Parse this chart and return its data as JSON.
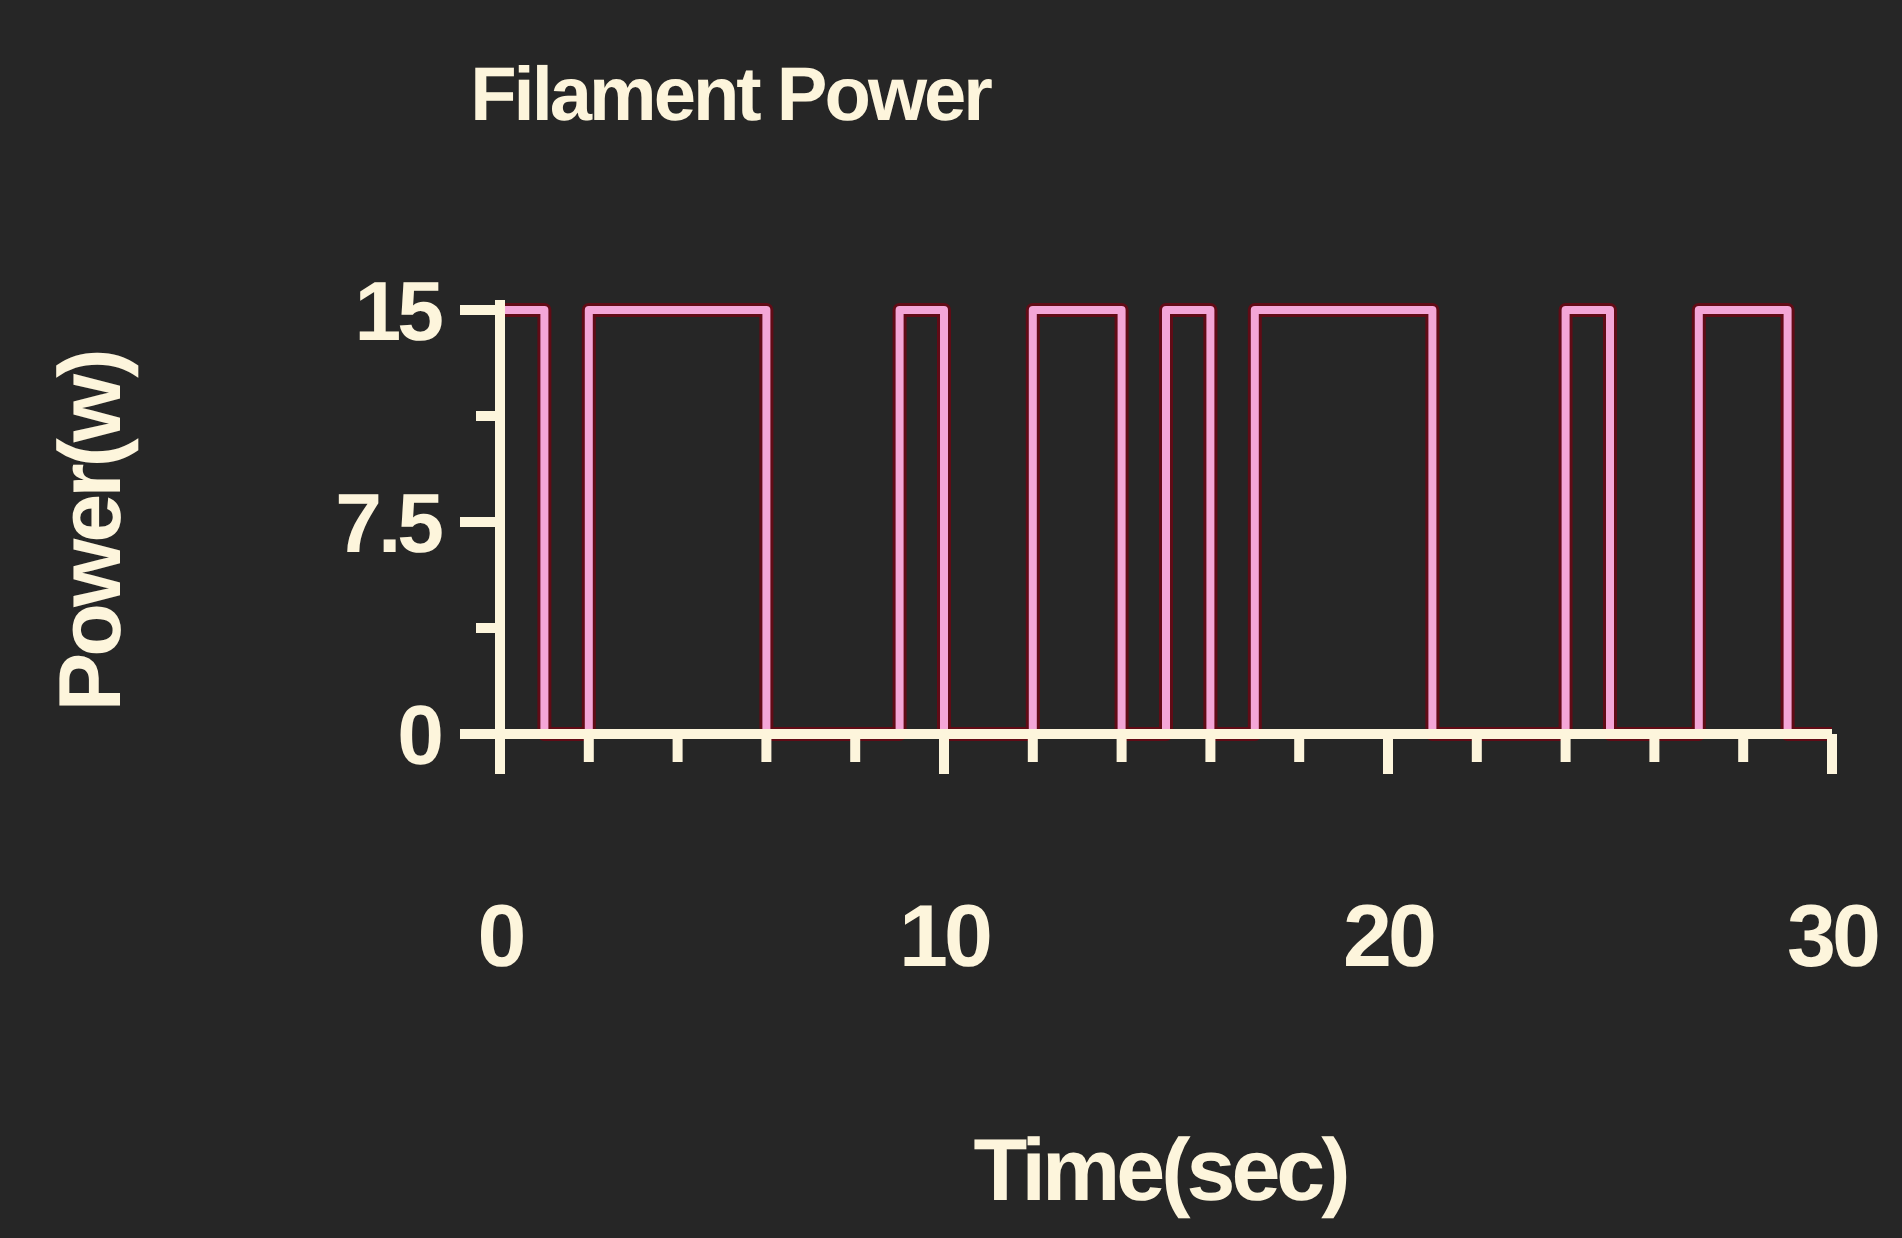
{
  "chart_data": {
    "type": "line",
    "title": "Filament Power",
    "xlabel": "Time(sec)",
    "ylabel": "Power(w)",
    "xlim": [
      0,
      30
    ],
    "ylim": [
      0,
      15
    ],
    "xticks": [
      0,
      {
        "value": 2,
        "label": null
      },
      {
        "value": 4,
        "label": null
      },
      {
        "value": 6,
        "label": null
      },
      {
        "value": 8,
        "label": null
      },
      10,
      {
        "value": 12,
        "label": null
      },
      {
        "value": 14,
        "label": null
      },
      {
        "value": 16,
        "label": null
      },
      {
        "value": 18,
        "label": null
      },
      20,
      {
        "value": 22,
        "label": null
      },
      {
        "value": 24,
        "label": null
      },
      {
        "value": 26,
        "label": null
      },
      {
        "value": 28,
        "label": null
      },
      30
    ],
    "yticks": [
      0,
      {
        "value": 3.75,
        "label": null
      },
      7.5,
      {
        "value": 11.25,
        "label": null
      },
      15
    ],
    "grid": false,
    "marker": "none",
    "line_style": "solid",
    "series": [
      {
        "color": "#f4a6d7",
        "x": [
          0,
          1,
          1,
          2,
          2,
          6,
          6,
          9,
          9,
          10,
          10,
          12,
          12,
          14,
          14,
          15,
          15,
          16,
          16,
          17,
          17,
          21,
          21,
          24,
          24,
          25,
          25,
          27,
          27,
          29,
          29,
          30
        ],
        "values": [
          15,
          15,
          0,
          0,
          15,
          15,
          0,
          0,
          15,
          15,
          0,
          0,
          15,
          15,
          0,
          0,
          15,
          15,
          0,
          0,
          15,
          15,
          0,
          0,
          15,
          15,
          0,
          0,
          15,
          15,
          0,
          0
        ]
      }
    ]
  }
}
